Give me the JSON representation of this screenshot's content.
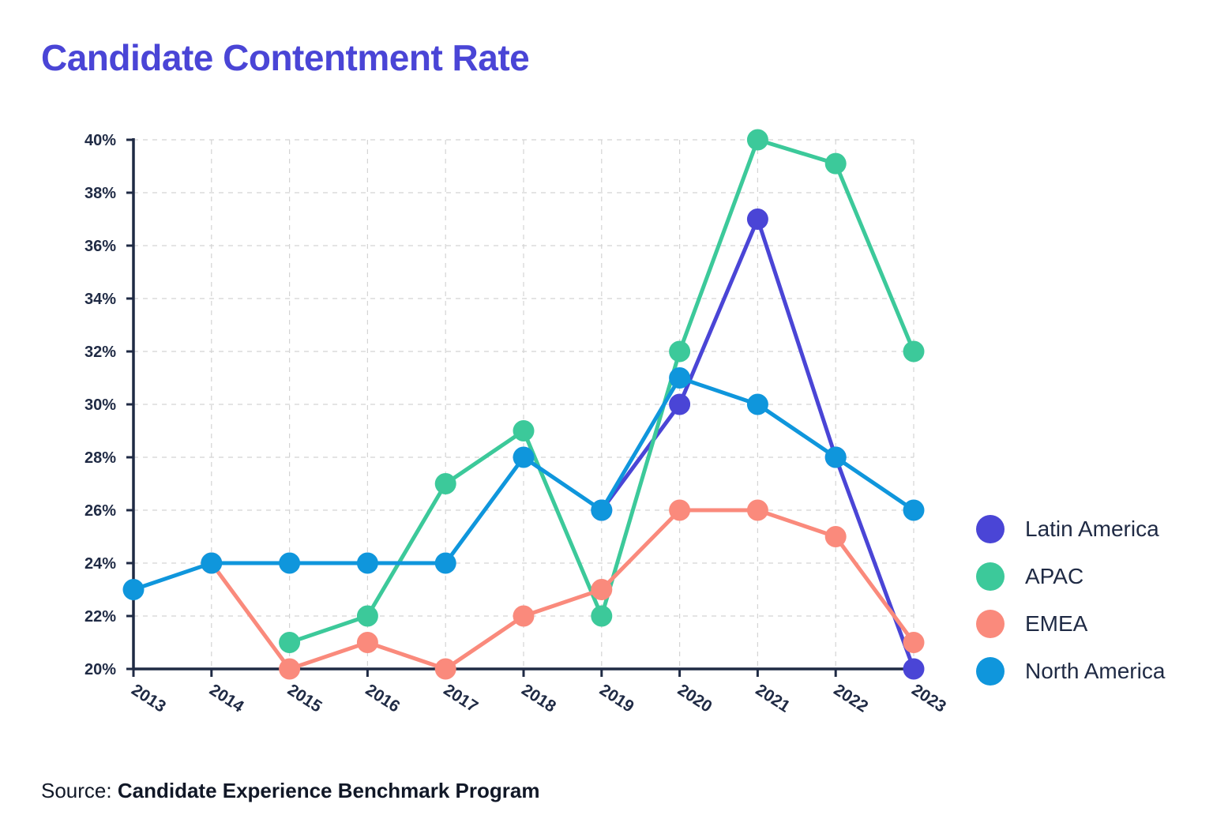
{
  "chart_data": {
    "type": "line",
    "title": "Candidate Contentment Rate",
    "xlabel": "",
    "ylabel": "",
    "x": [
      "2013",
      "2014",
      "2015",
      "2016",
      "2017",
      "2018",
      "2019",
      "2020",
      "2021",
      "2022",
      "2023"
    ],
    "ylim": [
      20,
      40
    ],
    "ytick_step": 2,
    "ytick_labels": [
      "20%",
      "22%",
      "24%",
      "26%",
      "28%",
      "30%",
      "32%",
      "34%",
      "36%",
      "38%",
      "40%"
    ],
    "grid": true,
    "legend_position": "right",
    "series": [
      {
        "name": "Latin America",
        "color": "#4a45d6",
        "values": [
          null,
          null,
          null,
          null,
          null,
          null,
          26,
          30,
          37,
          28,
          20
        ]
      },
      {
        "name": "APAC",
        "color": "#3cc99a",
        "values": [
          null,
          null,
          21,
          22,
          27,
          29,
          22,
          32,
          40,
          39.1,
          32
        ]
      },
      {
        "name": "EMEA",
        "color": "#fa8a7c",
        "values": [
          null,
          24,
          20,
          21,
          20,
          22,
          23,
          26,
          26,
          25,
          21
        ]
      },
      {
        "name": "North America",
        "color": "#0f96dc",
        "values": [
          23,
          24,
          24,
          24,
          24,
          28,
          26,
          31,
          30,
          28,
          26
        ]
      }
    ]
  },
  "source": {
    "prefix": "Source:",
    "name": "Candidate Experience Benchmark Program"
  }
}
